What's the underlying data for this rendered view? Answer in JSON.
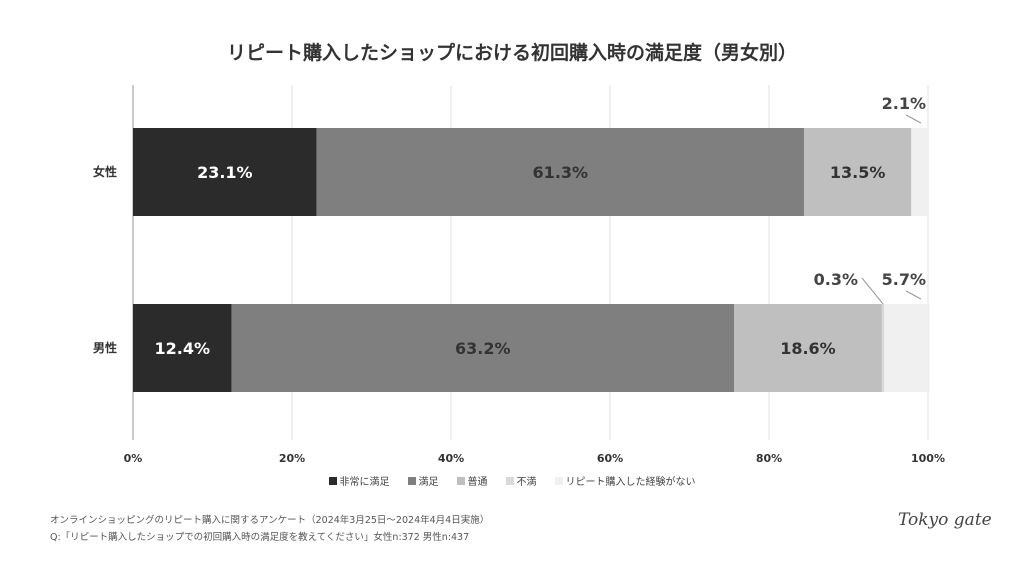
{
  "chart_data": {
    "type": "bar",
    "orientation": "horizontal",
    "stacked": "percent",
    "title": "リピート購入したショップにおける初回購入時の満足度（男女別）",
    "categories": [
      "女性",
      "男性"
    ],
    "series": [
      {
        "name": "非常に満足",
        "color": "#2b2b2b",
        "values": [
          23.1,
          12.4
        ]
      },
      {
        "name": "満足",
        "color": "#7f7f7f",
        "values": [
          61.3,
          63.2
        ]
      },
      {
        "name": "普通",
        "color": "#bfbfbf",
        "values": [
          13.5,
          18.6
        ]
      },
      {
        "name": "不満",
        "color": "#d9d9d9",
        "values": [
          0,
          0.3
        ]
      },
      {
        "name": "リピート購入した経験がない",
        "color": "#f0f0f0",
        "values": [
          2.1,
          5.7
        ]
      }
    ],
    "data_labels": [
      [
        "23.1%",
        "61.3%",
        "13.5%",
        "",
        "2.1%"
      ],
      [
        "12.4%",
        "63.2%",
        "18.6%",
        "0.3%",
        "5.7%"
      ]
    ],
    "xlim": [
      0,
      100
    ],
    "x_ticks": [
      "0%",
      "20%",
      "40%",
      "60%",
      "80%",
      "100%"
    ],
    "grid": true,
    "legend": "bottom"
  },
  "footer": {
    "line1": "オンラインショッピングのリピート購入に関するアンケート（2024年3月25日〜2024年4月4日実施）",
    "line2": "Q:「リピート購入したショップでの初回購入時の満足度を教えてください」女性n:372 男性n:437"
  },
  "logo": "Tokyo gate"
}
